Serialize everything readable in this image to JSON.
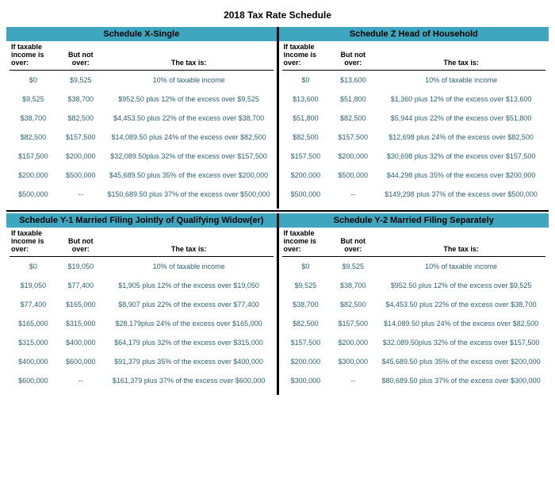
{
  "page_title": "2018 Tax Rate Schedule",
  "header_bg": "#3ea7bf",
  "text_color": "#2a6272",
  "col_headers": {
    "over": "If taxable income is over:",
    "not_over": "But not over:",
    "tax": "The tax is:"
  },
  "schedules": [
    {
      "title": "Schedule X-Single",
      "rows": [
        {
          "over": "$0",
          "not_over": "$9,525",
          "tax": "10% of taxable income"
        },
        {
          "over": "$9,525",
          "not_over": "$38,700",
          "tax": "$952.50 plus 12% of the excess over $9,525"
        },
        {
          "over": "$38,700",
          "not_over": "$82,500",
          "tax": "$4,453.50 plus 22% of the excess over $38,700"
        },
        {
          "over": "$82,500",
          "not_over": "$157,500",
          "tax": "$14,089.50 plus 24% of the excess over $82,500"
        },
        {
          "over": "$157,500",
          "not_over": "$200,000",
          "tax": "$32,089.50plus 32% of the excess over $157,500"
        },
        {
          "over": "$200,000",
          "not_over": "$500,000",
          "tax": "$45,689.50 plus 35% of the excess over $200,000"
        },
        {
          "over": "$500,000",
          "not_over": "--",
          "tax": "$150,689.50 plus 37% of the excess over $500,000"
        }
      ]
    },
    {
      "title": "Schedule Z Head of Household",
      "rows": [
        {
          "over": "$0",
          "not_over": "$13,600",
          "tax": "10% of taxable income"
        },
        {
          "over": "$13,600",
          "not_over": "$51,800",
          "tax": "$1,360 plus 12% of the excess over $13,600"
        },
        {
          "over": "$51,800",
          "not_over": "$82,500",
          "tax": "$5,944 plus 22% of the excess over $51,800"
        },
        {
          "over": "$82,500",
          "not_over": "$157,500",
          "tax": "$12,698 plus 24% of the excess over $82,500"
        },
        {
          "over": "$157,500",
          "not_over": "$200,000",
          "tax": "$30,698 plus 32% of the excess over $157,500"
        },
        {
          "over": "$200,000",
          "not_over": "$500,000",
          "tax": "$44,298 plus 35% of the excess over $200,000"
        },
        {
          "over": "$500,000",
          "not_over": "--",
          "tax": "$149,298 plus 37% of the excess over $500,000"
        }
      ]
    },
    {
      "title": "Schedule Y-1 Married Filing Jointly of Qualifying Widow(er)",
      "rows": [
        {
          "over": "$0",
          "not_over": "$19,050",
          "tax": "10% of taxable income"
        },
        {
          "over": "$19,050",
          "not_over": "$77,400",
          "tax": "$1,905 plus 12% of the excess over $19,050"
        },
        {
          "over": "$77,400",
          "not_over": "$165,000",
          "tax": "$8,907 plus 22% of the excess over $77,400"
        },
        {
          "over": "$165,000",
          "not_over": "$315,000",
          "tax": "$28,179plus 24% of the excess over $165,000"
        },
        {
          "over": "$315,000",
          "not_over": "$400,000",
          "tax": "$64,179 plus 32% of the excess over $315,000"
        },
        {
          "over": "$400,000",
          "not_over": "$600,000",
          "tax": "$91,379 plus 35% of the excess over $400,000"
        },
        {
          "over": "$600,000",
          "not_over": "--",
          "tax": "$161,379 plus 37% of the excess over $600,000"
        }
      ]
    },
    {
      "title": "Schedule Y-2 Married Filing Separately",
      "rows": [
        {
          "over": "$0",
          "not_over": "$9,525",
          "tax": "10% of taxable income"
        },
        {
          "over": "$9,525",
          "not_over": "$38,700",
          "tax": "$952.50 plus 12% of the excess over $9,525"
        },
        {
          "over": "$38,700",
          "not_over": "$82,500",
          "tax": "$4,453.50 plus 22% of the excess over $38,700"
        },
        {
          "over": "$82,500",
          "not_over": "$157,500",
          "tax": "$14,089.50 plus 24% of the excess over $82,500"
        },
        {
          "over": "$157,500",
          "not_over": "$200,000",
          "tax": "$32,089.50plus 32% of the excess over $157,500"
        },
        {
          "over": "$200,000",
          "not_over": "$300,000",
          "tax": "$45,689.50 plus 35% of the excess over $200,000"
        },
        {
          "over": "$300,000",
          "not_over": "--",
          "tax": "$80,689.50 plus 37% of the excess over $300,000"
        }
      ]
    }
  ]
}
